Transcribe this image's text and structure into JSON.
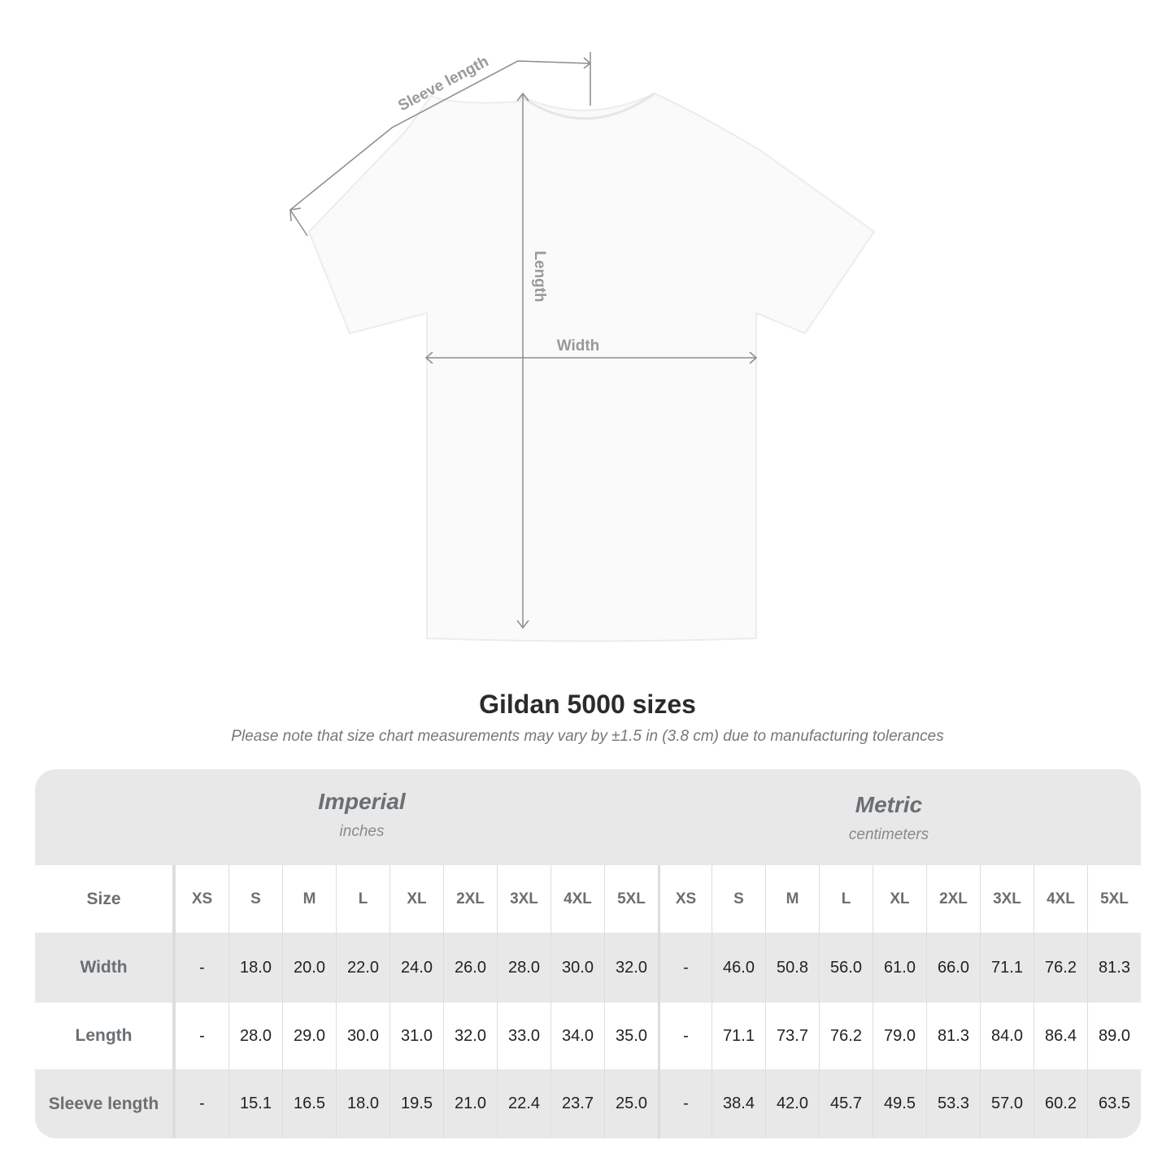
{
  "diagram": {
    "labels": {
      "sleeve": "Sleeve length",
      "length": "Length",
      "width": "Width"
    },
    "colors": {
      "shirt": "#ffffff",
      "lines": "#8c8c8c"
    }
  },
  "title": "Gildan 5000 sizes",
  "note": "Please note that size chart measurements may vary by ±1.5 in (3.8 cm) due to manufacturing tolerances",
  "table": {
    "imperial": {
      "name": "Imperial",
      "unit": "inches"
    },
    "metric": {
      "name": "Metric",
      "unit": "centimeters"
    },
    "size_label": "Size",
    "sizes": [
      "XS",
      "S",
      "M",
      "L",
      "XL",
      "2XL",
      "3XL",
      "4XL",
      "5XL"
    ],
    "rows": [
      {
        "label": "Width",
        "imperial": [
          "-",
          "18.0",
          "20.0",
          "22.0",
          "24.0",
          "26.0",
          "28.0",
          "30.0",
          "32.0"
        ],
        "metric": [
          "-",
          "46.0",
          "50.8",
          "56.0",
          "61.0",
          "66.0",
          "71.1",
          "76.2",
          "81.3"
        ]
      },
      {
        "label": "Length",
        "imperial": [
          "-",
          "28.0",
          "29.0",
          "30.0",
          "31.0",
          "32.0",
          "33.0",
          "34.0",
          "35.0"
        ],
        "metric": [
          "-",
          "71.1",
          "73.7",
          "76.2",
          "79.0",
          "81.3",
          "84.0",
          "86.4",
          "89.0"
        ]
      },
      {
        "label": "Sleeve length",
        "imperial": [
          "-",
          "15.1",
          "16.5",
          "18.0",
          "19.5",
          "21.0",
          "22.4",
          "23.7",
          "25.0"
        ],
        "metric": [
          "-",
          "38.4",
          "42.0",
          "45.7",
          "49.5",
          "53.3",
          "57.0",
          "60.2",
          "63.5"
        ]
      }
    ],
    "colors": {
      "band": "#e8e8e8",
      "header_text": "#6a6f73"
    }
  }
}
